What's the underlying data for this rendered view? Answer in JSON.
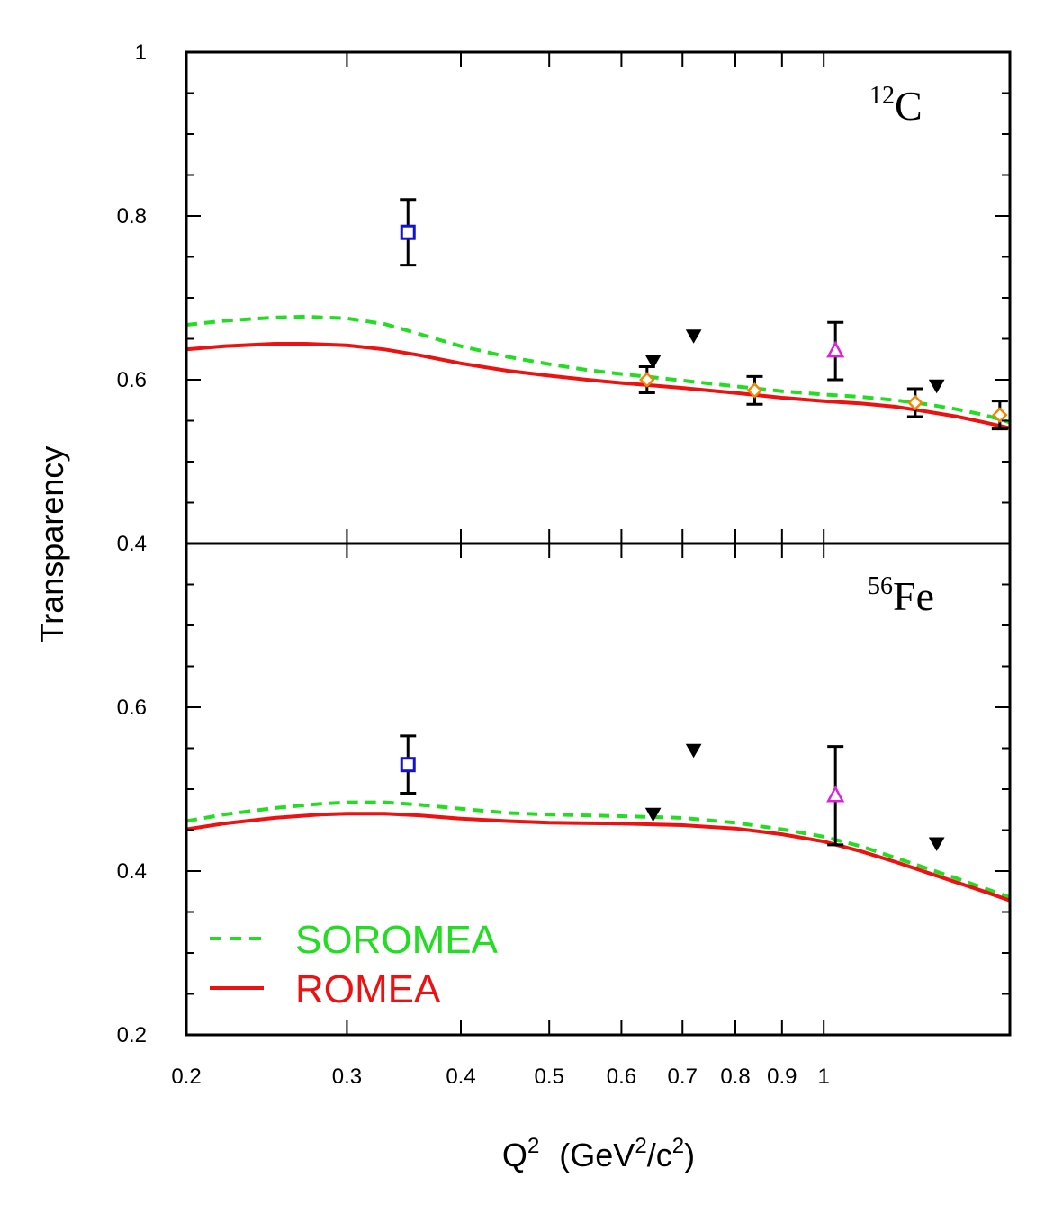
{
  "chart_data": {
    "type": "line",
    "ylabel": "Transparency",
    "xlabel": {
      "q": "Q",
      "sup1": "2",
      "open": "(GeV",
      "sup2": "2",
      "slash": "/c",
      "sup3": "2",
      "close": ")"
    },
    "x_scale": "log",
    "xlim": [
      0.2,
      1.6
    ],
    "x_ticks": [
      {
        "value": 0.2,
        "label": "0.2"
      },
      {
        "value": 0.3,
        "label": "0.3"
      },
      {
        "value": 0.4,
        "label": "0.4"
      },
      {
        "value": 0.5,
        "label": "0.5"
      },
      {
        "value": 0.6,
        "label": "0.6"
      },
      {
        "value": 0.7,
        "label": "0.7"
      },
      {
        "value": 0.8,
        "label": "0.8"
      },
      {
        "value": 0.9,
        "label": "0.9"
      },
      {
        "value": 1.0,
        "label": "1"
      }
    ],
    "colors": {
      "soromea": "#22dd22",
      "romea": "#ee1111",
      "square": "#1111dd",
      "triangle": "#dd22dd",
      "diamond": "#ee8800",
      "inverted_triangle": "#000000"
    },
    "legend": {
      "placement": "bottom-left",
      "entries": [
        {
          "name": "SOROMEA",
          "series": "soromea"
        },
        {
          "name": "ROMEA",
          "series": "romea"
        }
      ]
    },
    "panels": [
      {
        "nucleus": {
          "mass": "12",
          "symbol": "C"
        },
        "ylim": [
          0.4,
          1.0
        ],
        "y_ticks": [
          {
            "value": 0.4,
            "label": "0.4"
          },
          {
            "value": 0.6,
            "label": "0.6"
          },
          {
            "value": 0.8,
            "label": "0.8"
          },
          {
            "value": 1.0,
            "label": "1"
          }
        ],
        "series": [
          {
            "name": "SOROMEA",
            "style": "dashed",
            "color": "#22dd22",
            "x": [
              0.2,
              0.22,
              0.25,
              0.27,
              0.3,
              0.33,
              0.36,
              0.4,
              0.45,
              0.5,
              0.55,
              0.6,
              0.65,
              0.7,
              0.8,
              0.9,
              1.0,
              1.1,
              1.2,
              1.3,
              1.4,
              1.5,
              1.6
            ],
            "y": [
              0.667,
              0.672,
              0.676,
              0.677,
              0.675,
              0.668,
              0.656,
              0.641,
              0.628,
              0.619,
              0.612,
              0.607,
              0.603,
              0.599,
              0.592,
              0.586,
              0.582,
              0.579,
              0.575,
              0.57,
              0.564,
              0.557,
              0.548
            ]
          },
          {
            "name": "ROMEA",
            "style": "solid",
            "color": "#ee1111",
            "x": [
              0.2,
              0.22,
              0.25,
              0.27,
              0.3,
              0.33,
              0.36,
              0.4,
              0.45,
              0.5,
              0.55,
              0.6,
              0.65,
              0.7,
              0.8,
              0.9,
              1.0,
              1.1,
              1.2,
              1.3,
              1.4,
              1.5,
              1.6
            ],
            "y": [
              0.637,
              0.641,
              0.644,
              0.644,
              0.642,
              0.637,
              0.63,
              0.62,
              0.611,
              0.605,
              0.6,
              0.596,
              0.593,
              0.59,
              0.584,
              0.578,
              0.574,
              0.571,
              0.567,
              0.561,
              0.555,
              0.548,
              0.541
            ]
          }
        ],
        "points": [
          {
            "marker": "square",
            "x": 0.35,
            "y": 0.78,
            "err": 0.04
          },
          {
            "marker": "triangle",
            "x": 1.03,
            "y": 0.635,
            "err": 0.035
          },
          {
            "marker": "diamond",
            "x": 0.64,
            "y": 0.6,
            "err": 0.016
          },
          {
            "marker": "diamond",
            "x": 0.84,
            "y": 0.587,
            "err": 0.017
          },
          {
            "marker": "diamond",
            "x": 1.26,
            "y": 0.572,
            "err": 0.017
          },
          {
            "marker": "diamond",
            "x": 1.56,
            "y": 0.557,
            "err": 0.017
          },
          {
            "marker": "inverted_triangle",
            "x": 0.65,
            "y": 0.622
          },
          {
            "marker": "inverted_triangle",
            "x": 0.72,
            "y": 0.653
          },
          {
            "marker": "inverted_triangle",
            "x": 1.33,
            "y": 0.592
          }
        ]
      },
      {
        "nucleus": {
          "mass": "56",
          "symbol": "Fe"
        },
        "ylim": [
          0.2,
          0.8
        ],
        "y_ticks": [
          {
            "value": 0.2,
            "label": "0.2"
          },
          {
            "value": 0.4,
            "label": "0.4"
          },
          {
            "value": 0.6,
            "label": "0.6"
          }
        ],
        "series": [
          {
            "name": "SOROMEA",
            "style": "dashed",
            "color": "#22dd22",
            "x": [
              0.2,
              0.22,
              0.25,
              0.28,
              0.3,
              0.33,
              0.36,
              0.4,
              0.45,
              0.5,
              0.6,
              0.7,
              0.8,
              0.9,
              1.0,
              1.1,
              1.2,
              1.3,
              1.4,
              1.5,
              1.6
            ],
            "y": [
              0.461,
              0.469,
              0.477,
              0.482,
              0.484,
              0.484,
              0.481,
              0.476,
              0.471,
              0.469,
              0.467,
              0.465,
              0.459,
              0.451,
              0.442,
              0.43,
              0.416,
              0.403,
              0.391,
              0.379,
              0.368
            ]
          },
          {
            "name": "ROMEA",
            "style": "solid",
            "color": "#ee1111",
            "x": [
              0.2,
              0.22,
              0.25,
              0.28,
              0.3,
              0.33,
              0.36,
              0.4,
              0.45,
              0.5,
              0.6,
              0.7,
              0.8,
              0.9,
              1.0,
              1.1,
              1.2,
              1.3,
              1.4,
              1.5,
              1.6
            ],
            "y": [
              0.451,
              0.458,
              0.465,
              0.469,
              0.47,
              0.47,
              0.468,
              0.464,
              0.461,
              0.459,
              0.458,
              0.456,
              0.452,
              0.445,
              0.436,
              0.424,
              0.411,
              0.398,
              0.386,
              0.375,
              0.364
            ]
          }
        ],
        "points": [
          {
            "marker": "square",
            "x": 0.35,
            "y": 0.53,
            "err": 0.035
          },
          {
            "marker": "triangle",
            "x": 1.03,
            "y": 0.492,
            "err": 0.06
          },
          {
            "marker": "inverted_triangle",
            "x": 0.65,
            "y": 0.469
          },
          {
            "marker": "inverted_triangle",
            "x": 0.72,
            "y": 0.547
          },
          {
            "marker": "inverted_triangle",
            "x": 1.33,
            "y": 0.433
          }
        ]
      }
    ]
  }
}
